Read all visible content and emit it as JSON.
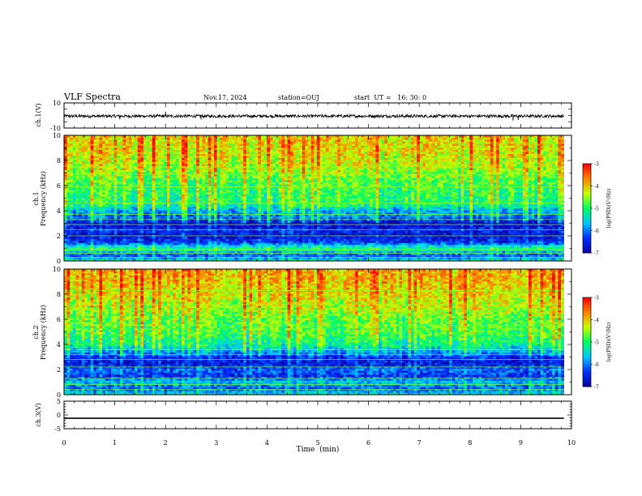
{
  "header": {
    "title": "VLF Spectra",
    "date": "Nov.17, 2024",
    "station": "station=OUJ",
    "start": "start  UT =   16: 30: 0"
  },
  "colors": {
    "background": "#ffffff",
    "axis": "#000000",
    "colormap": [
      "#0a00a0",
      "#0030ff",
      "#00c8ff",
      "#00ff60",
      "#c8ff00",
      "#ff8000",
      "#ff0000"
    ]
  },
  "chart_data": [
    {
      "type": "line",
      "panel": "waveform ch.1",
      "ylabel": "ch.1(V)",
      "ylim": [
        -10,
        10
      ],
      "yticks": [
        "10",
        "-10"
      ],
      "xlim": [
        0,
        10
      ],
      "baseline": -0.5,
      "noise_amplitude": 1.2,
      "spikes": [
        {
          "x": 1.1,
          "y": -3
        },
        {
          "x": 2.0,
          "y": 3
        },
        {
          "x": 2.7,
          "y": -3
        },
        {
          "x": 8.85,
          "y": -4
        },
        {
          "x": 8.95,
          "y": -3.5
        }
      ]
    },
    {
      "type": "heatmap",
      "panel": "spectrogram ch.1",
      "ylabel": "ch.1\nFrequency  (kHz)",
      "xlim": [
        0,
        9.85
      ],
      "ylim": [
        0,
        10
      ],
      "yticks": [
        "0",
        "2",
        "4",
        "6",
        "8",
        "10"
      ],
      "color_scale": {
        "label": "log(PSD)(V²/Hz)",
        "range": [
          -7,
          -3
        ],
        "ticks": [
          "-3",
          "-4",
          "-5",
          "-6",
          "-7"
        ]
      },
      "frequency_profile_kHz_vs_logPSD": [
        [
          0,
          -5.4
        ],
        [
          0.5,
          -6.3
        ],
        [
          1.0,
          -5.0
        ],
        [
          1.5,
          -6.4
        ],
        [
          2.0,
          -6.7
        ],
        [
          2.5,
          -6.5
        ],
        [
          3.0,
          -6.8
        ],
        [
          3.5,
          -6.0
        ],
        [
          4.0,
          -5.8
        ],
        [
          4.5,
          -5.1
        ],
        [
          5.0,
          -5.0
        ],
        [
          6.0,
          -4.9
        ],
        [
          7.0,
          -4.6
        ],
        [
          8.0,
          -4.3
        ],
        [
          9.0,
          -4.2
        ],
        [
          10.0,
          -4.1
        ]
      ],
      "lines_kHz": [
        0.3,
        0.6,
        0.9,
        1.2,
        2.0,
        2.5,
        2.9,
        3.3,
        3.7,
        4.6,
        5.9,
        6.9,
        7.5
      ]
    },
    {
      "type": "heatmap",
      "panel": "spectrogram ch.2",
      "ylabel": "ch.2\nFrequency  (kHz)",
      "xlim": [
        0,
        9.85
      ],
      "ylim": [
        0,
        10
      ],
      "yticks": [
        "0",
        "2",
        "4",
        "6",
        "8",
        "10"
      ],
      "color_scale": {
        "label": "log(PSD)(V²/Hz)",
        "range": [
          -7,
          -3
        ],
        "ticks": [
          "-3",
          "-4",
          "-5",
          "-6",
          "-7"
        ]
      },
      "frequency_profile_kHz_vs_logPSD": [
        [
          0,
          -5.3
        ],
        [
          0.5,
          -6.2
        ],
        [
          1.0,
          -5.6
        ],
        [
          1.5,
          -6.4
        ],
        [
          2.0,
          -6.1
        ],
        [
          2.5,
          -6.6
        ],
        [
          3.0,
          -6.4
        ],
        [
          3.5,
          -5.8
        ],
        [
          4.0,
          -5.2
        ],
        [
          4.5,
          -5.0
        ],
        [
          5.0,
          -4.8
        ],
        [
          6.0,
          -4.7
        ],
        [
          7.0,
          -4.4
        ],
        [
          8.0,
          -4.2
        ],
        [
          9.0,
          -4.0
        ],
        [
          10.0,
          -3.9
        ]
      ],
      "lines_kHz": [
        0.4,
        0.8,
        1.3,
        2.2,
        2.8,
        3.2,
        3.6,
        5.5,
        6.7,
        7.2,
        8.3
      ]
    },
    {
      "type": "line",
      "panel": "waveform ch.3",
      "ylabel": "ch.3(V)",
      "ylim": [
        -5,
        5
      ],
      "yticks": [
        "5",
        "0",
        "-5"
      ],
      "xlim": [
        0,
        10
      ],
      "xlabel": "Time  (min)",
      "xticks": [
        "0",
        "1",
        "2",
        "3",
        "4",
        "5",
        "6",
        "7",
        "8",
        "9",
        "10"
      ],
      "values_constant": -1.2
    }
  ]
}
